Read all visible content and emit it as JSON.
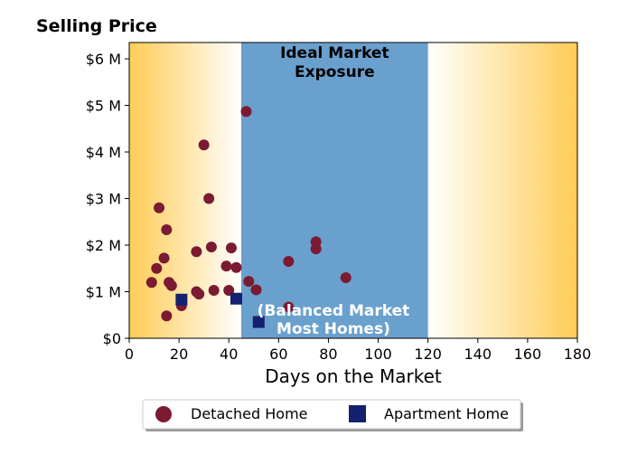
{
  "chart_data": {
    "type": "scatter",
    "title": "Selling Price",
    "xlabel": "Days on the Market",
    "ylabel": "",
    "xlim": [
      0,
      180
    ],
    "ylim": [
      0,
      6.35
    ],
    "x_ticks": [
      0,
      20,
      40,
      60,
      80,
      100,
      120,
      140,
      160,
      180
    ],
    "x_tick_labels": [
      "0",
      "20",
      "40",
      "60",
      "80",
      "100",
      "120",
      "140",
      "160",
      "180"
    ],
    "y_ticks": [
      0,
      1,
      2,
      3,
      4,
      5,
      6
    ],
    "y_tick_labels": [
      "$0",
      "$1 M",
      "$2 M",
      "$3 M",
      "$4 M",
      "$5 M",
      "$6 M"
    ],
    "grid": false,
    "legend_placement": "bottom-center",
    "bands": [
      {
        "x_range": [
          0,
          45
        ],
        "color": "#ffcc55",
        "fade": "right"
      },
      {
        "x_range": [
          45,
          120
        ],
        "color": "#6aa0cd",
        "label_lines": [
          "Ideal Market",
          "Exposure"
        ],
        "label_color": "#000000",
        "label_position": "top"
      },
      {
        "x_range": [
          120,
          180
        ],
        "color": "#ffcc55",
        "fade": "left"
      }
    ],
    "annotation": {
      "lines": [
        "(Balanced Market",
        "Most Homes)"
      ],
      "color": "#ffffff",
      "x": 82,
      "y": 0.6
    },
    "series": [
      {
        "name": "Detached Home",
        "marker": "circle",
        "color": "#7b1a33",
        "points": [
          [
            9,
            1.2
          ],
          [
            11,
            1.5
          ],
          [
            12,
            2.8
          ],
          [
            14,
            1.72
          ],
          [
            15,
            2.33
          ],
          [
            15,
            0.48
          ],
          [
            16,
            1.2
          ],
          [
            17,
            1.13
          ],
          [
            21,
            0.7
          ],
          [
            27,
            1.86
          ],
          [
            27,
            1.0
          ],
          [
            28,
            0.95
          ],
          [
            30,
            4.15
          ],
          [
            32,
            3.0
          ],
          [
            33,
            1.96
          ],
          [
            34,
            1.03
          ],
          [
            39,
            1.55
          ],
          [
            40,
            1.03
          ],
          [
            41,
            1.94
          ],
          [
            43,
            1.52
          ],
          [
            47,
            4.87
          ],
          [
            48,
            1.22
          ],
          [
            51,
            1.04
          ],
          [
            64,
            1.65
          ],
          [
            64,
            0.67
          ],
          [
            75,
            2.07
          ],
          [
            75,
            1.92
          ],
          [
            87,
            1.3
          ]
        ]
      },
      {
        "name": "Apartment Home",
        "marker": "square",
        "color": "#13216e",
        "points": [
          [
            21,
            0.83
          ],
          [
            43,
            0.85
          ],
          [
            52,
            0.35
          ]
        ]
      }
    ]
  }
}
